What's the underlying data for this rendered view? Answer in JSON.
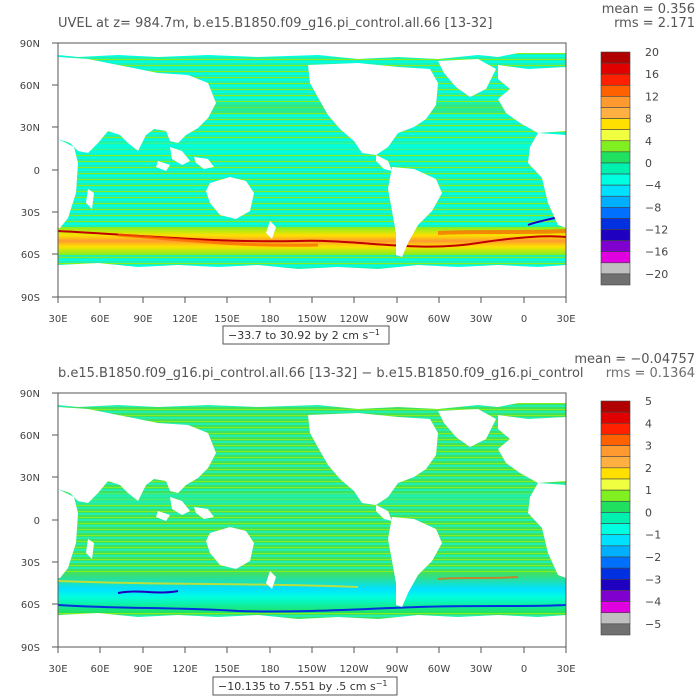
{
  "panels": [
    {
      "title": "UVEL at z= 984.7m, b.e15.B1850.f09_g16.pi_control.all.66 [13-32]",
      "mean_label": "mean = 0.356",
      "rms_label": "rms = 2.171",
      "range_label": "−33.7 to 30.92 by 2 cm s",
      "range_sup": "−1",
      "y_ticks": [
        "90N",
        "60N",
        "30N",
        "0",
        "30S",
        "60S",
        "90S"
      ],
      "x_ticks": [
        "30E",
        "60E",
        "90E",
        "120E",
        "150E",
        "180",
        "150W",
        "120W",
        "90W",
        "60W",
        "30W",
        "0",
        "30E"
      ],
      "colorbar_labels": [
        "20",
        "16",
        "12",
        "8",
        "4",
        "0",
        "−4",
        "−8",
        "−12",
        "−16",
        "−20"
      ],
      "colorbar_colors": [
        "#b00000",
        "#e00000",
        "#ff2000",
        "#ff6000",
        "#ff9a30",
        "#ffb040",
        "#ffe000",
        "#f0ff40",
        "#80f020",
        "#20e060",
        "#00f0b0",
        "#00ffe0",
        "#00e0ff",
        "#00b0ff",
        "#0070ff",
        "#0030e0",
        "#2000c0",
        "#8000d0",
        "#e000e0",
        "#c0c0c0",
        "#707070"
      ]
    },
    {
      "title": "b.e15.B1850.f09_g16.pi_control.all.66 [13-32] − b.e15.B1850.f09_g16.pi_control",
      "mean_label": "mean = −0.04757",
      "rms_label": "rms = 0.1364",
      "range_label": "−10.135 to 7.551 by .5 cm s",
      "range_sup": "−1",
      "y_ticks": [
        "90N",
        "60N",
        "30N",
        "0",
        "30S",
        "60S",
        "90S"
      ],
      "x_ticks": [
        "30E",
        "60E",
        "90E",
        "120E",
        "150E",
        "180",
        "150W",
        "120W",
        "90W",
        "60W",
        "30W",
        "0",
        "30E"
      ],
      "colorbar_labels": [
        "5",
        "4",
        "3",
        "2",
        "1",
        "0",
        "−1",
        "−2",
        "−3",
        "−4",
        "−5"
      ],
      "colorbar_colors": [
        "#b00000",
        "#e00000",
        "#ff2000",
        "#ff6000",
        "#ff9a30",
        "#ffb040",
        "#ffe000",
        "#f0ff40",
        "#80f020",
        "#20e060",
        "#00f0b0",
        "#00ffe0",
        "#00e0ff",
        "#00b0ff",
        "#0070ff",
        "#0030e0",
        "#2000c0",
        "#8000d0",
        "#e000e0",
        "#c0c0c0",
        "#707070"
      ]
    }
  ]
}
